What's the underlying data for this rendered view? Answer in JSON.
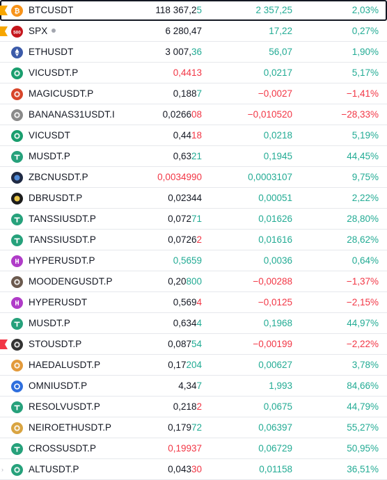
{
  "colors": {
    "up": "#22ab94",
    "down": "#f23645",
    "neutral": "#131722",
    "flag_orange": "#f7a600",
    "flag_red": "#f23645"
  },
  "rows": [
    {
      "symbol": "BTCUSDT",
      "icon": "bitcoin-icon",
      "icon_color": "#f7931a",
      "last_main": "118 367,2",
      "last_tail": "5",
      "tail_dir": "up",
      "last_dir": "neutral",
      "chg": "2 357,25",
      "chg_dir": "up",
      "chgp": "2,03%",
      "chgp_dir": "up",
      "flag": "orange",
      "selected": true
    },
    {
      "symbol": "SPX",
      "icon": "sp500-icon",
      "icon_color": "#c5161d",
      "icon_text": "500",
      "last_main": "6 280,47",
      "last_tail": "",
      "tail_dir": "neutral",
      "last_dir": "neutral",
      "chg": "17,22",
      "chg_dir": "up",
      "chgp": "0,27%",
      "chgp_dir": "up",
      "flag": "orange",
      "dot": true
    },
    {
      "symbol": "ETHUSDT",
      "icon": "ethereum-icon",
      "icon_color": "#3c5ba9",
      "last_main": "3 007,",
      "last_tail": "36",
      "tail_dir": "up",
      "last_dir": "neutral",
      "chg": "56,07",
      "chg_dir": "up",
      "chgp": "1,90%",
      "chgp_dir": "up"
    },
    {
      "symbol": "VICUSDT.P",
      "icon": "vic-coin-icon",
      "icon_color": "#1a9e6e",
      "last_main": "0,4413",
      "last_tail": "",
      "tail_dir": "down",
      "last_dir": "down",
      "chg": "0,0217",
      "chg_dir": "up",
      "chgp": "5,17%",
      "chgp_dir": "up"
    },
    {
      "symbol": "MAGICUSDT.P",
      "icon": "magic-coin-icon",
      "icon_color": "#d8462b",
      "last_main": "0,188",
      "last_tail": "7",
      "tail_dir": "up",
      "last_dir": "neutral",
      "chg": "−0,0027",
      "chg_dir": "down",
      "chgp": "−1,41%",
      "chgp_dir": "down"
    },
    {
      "symbol": "BANANAS31USDT.I",
      "icon": "banana-coin-icon",
      "icon_color": "#8a8a8a",
      "last_main": "0,0266",
      "last_tail": "08",
      "tail_dir": "down",
      "last_dir": "neutral",
      "chg": "−0,010520",
      "chg_dir": "down",
      "chgp": "−28,33%",
      "chgp_dir": "down"
    },
    {
      "symbol": "VICUSDT",
      "icon": "vic-coin-icon",
      "icon_color": "#1a9e6e",
      "last_main": "0,44",
      "last_tail": "18",
      "tail_dir": "down",
      "last_dir": "neutral",
      "chg": "0,0218",
      "chg_dir": "up",
      "chgp": "5,19%",
      "chgp_dir": "up"
    },
    {
      "symbol": "MUSDT.P",
      "icon": "tether-icon",
      "icon_color": "#26a17b",
      "last_main": "0,63",
      "last_tail": "21",
      "tail_dir": "up",
      "last_dir": "neutral",
      "chg": "0,1945",
      "chg_dir": "up",
      "chgp": "44,45%",
      "chgp_dir": "up"
    },
    {
      "symbol": "ZBCNUSDT.P",
      "icon": "zbcn-coin-icon",
      "icon_color": "#1f2a44",
      "last_main": "0,0034990",
      "last_tail": "",
      "tail_dir": "down",
      "last_dir": "down",
      "chg": "0,0003107",
      "chg_dir": "up",
      "chgp": "9,75%",
      "chgp_dir": "up"
    },
    {
      "symbol": "DBRUSDT.P",
      "icon": "dbr-coin-icon",
      "icon_color": "#1c1c1c",
      "last_main": "0,02344",
      "last_tail": "",
      "tail_dir": "neutral",
      "last_dir": "neutral",
      "chg": "0,00051",
      "chg_dir": "up",
      "chgp": "2,22%",
      "chgp_dir": "up"
    },
    {
      "symbol": "TANSSIUSDT.P",
      "icon": "tether-icon",
      "icon_color": "#26a17b",
      "last_main": "0,072",
      "last_tail": "71",
      "tail_dir": "up",
      "last_dir": "neutral",
      "chg": "0,01626",
      "chg_dir": "up",
      "chgp": "28,80%",
      "chgp_dir": "up"
    },
    {
      "symbol": "TANSSIUSDT.P",
      "icon": "tether-icon",
      "icon_color": "#26a17b",
      "last_main": "0,0726",
      "last_tail": "2",
      "tail_dir": "down",
      "last_dir": "neutral",
      "chg": "0,01616",
      "chg_dir": "up",
      "chgp": "28,62%",
      "chgp_dir": "up"
    },
    {
      "symbol": "HYPERUSDT.P",
      "icon": "hyper-coin-icon",
      "icon_color": "#b03cc8",
      "last_main": "0,5659",
      "last_tail": "",
      "tail_dir": "up",
      "last_dir": "up",
      "chg": "0,0036",
      "chg_dir": "up",
      "chgp": "0,64%",
      "chgp_dir": "up"
    },
    {
      "symbol": "MOODENGUSDT.P",
      "icon": "moodeng-coin-icon",
      "icon_color": "#6b5a4e",
      "last_main": "0,20",
      "last_tail": "800",
      "tail_dir": "up",
      "last_dir": "neutral",
      "chg": "−0,00288",
      "chg_dir": "down",
      "chgp": "−1,37%",
      "chgp_dir": "down"
    },
    {
      "symbol": "HYPERUSDT",
      "icon": "hyper-coin-icon",
      "icon_color": "#b03cc8",
      "last_main": "0,569",
      "last_tail": "4",
      "tail_dir": "down",
      "last_dir": "neutral",
      "chg": "−0,0125",
      "chg_dir": "down",
      "chgp": "−2,15%",
      "chgp_dir": "down"
    },
    {
      "symbol": "MUSDT.P",
      "icon": "tether-icon",
      "icon_color": "#26a17b",
      "last_main": "0,634",
      "last_tail": "4",
      "tail_dir": "up",
      "last_dir": "neutral",
      "chg": "0,1968",
      "chg_dir": "up",
      "chgp": "44,97%",
      "chgp_dir": "up"
    },
    {
      "symbol": "STOUSDT.P",
      "icon": "sto-coin-icon",
      "icon_color": "#333333",
      "last_main": "0,087",
      "last_tail": "54",
      "tail_dir": "up",
      "last_dir": "neutral",
      "chg": "−0,00199",
      "chg_dir": "down",
      "chgp": "−2,22%",
      "chgp_dir": "down",
      "flag": "red"
    },
    {
      "symbol": "HAEDALUSDT.P",
      "icon": "haedal-coin-icon",
      "icon_color": "#e39a3b",
      "last_main": "0,17",
      "last_tail": "204",
      "tail_dir": "up",
      "last_dir": "neutral",
      "chg": "0,00627",
      "chg_dir": "up",
      "chgp": "3,78%",
      "chgp_dir": "up"
    },
    {
      "symbol": "OMNIUSDT.P",
      "icon": "omni-coin-icon",
      "icon_color": "#2f6fde",
      "last_main": "4,34",
      "last_tail": "7",
      "tail_dir": "up",
      "last_dir": "neutral",
      "chg": "1,993",
      "chg_dir": "up",
      "chgp": "84,66%",
      "chgp_dir": "up"
    },
    {
      "symbol": "RESOLVUSDT.P",
      "icon": "tether-icon",
      "icon_color": "#26a17b",
      "last_main": "0,218",
      "last_tail": "2",
      "tail_dir": "down",
      "last_dir": "neutral",
      "chg": "0,0675",
      "chg_dir": "up",
      "chgp": "44,79%",
      "chgp_dir": "up"
    },
    {
      "symbol": "NEIROETHUSDT.P",
      "icon": "neiro-coin-icon",
      "icon_color": "#d9a441",
      "last_main": "0,179",
      "last_tail": "72",
      "tail_dir": "up",
      "last_dir": "neutral",
      "chg": "0,06397",
      "chg_dir": "up",
      "chgp": "55,27%",
      "chgp_dir": "up"
    },
    {
      "symbol": "CROSSUSDT.P",
      "icon": "tether-icon",
      "icon_color": "#26a17b",
      "last_main": "0,19937",
      "last_tail": "",
      "tail_dir": "down",
      "last_dir": "down",
      "chg": "0,06729",
      "chg_dir": "up",
      "chgp": "50,95%",
      "chgp_dir": "up"
    },
    {
      "symbol": "ALTUSDT.P",
      "icon": "alt-coin-icon",
      "icon_color": "#26a17b",
      "last_main": "0,043",
      "last_tail": "30",
      "tail_dir": "down",
      "last_dir": "neutral",
      "chg": "0,01158",
      "chg_dir": "up",
      "chgp": "36,51%",
      "chgp_dir": "up"
    }
  ],
  "left_handle_glyph": "›"
}
